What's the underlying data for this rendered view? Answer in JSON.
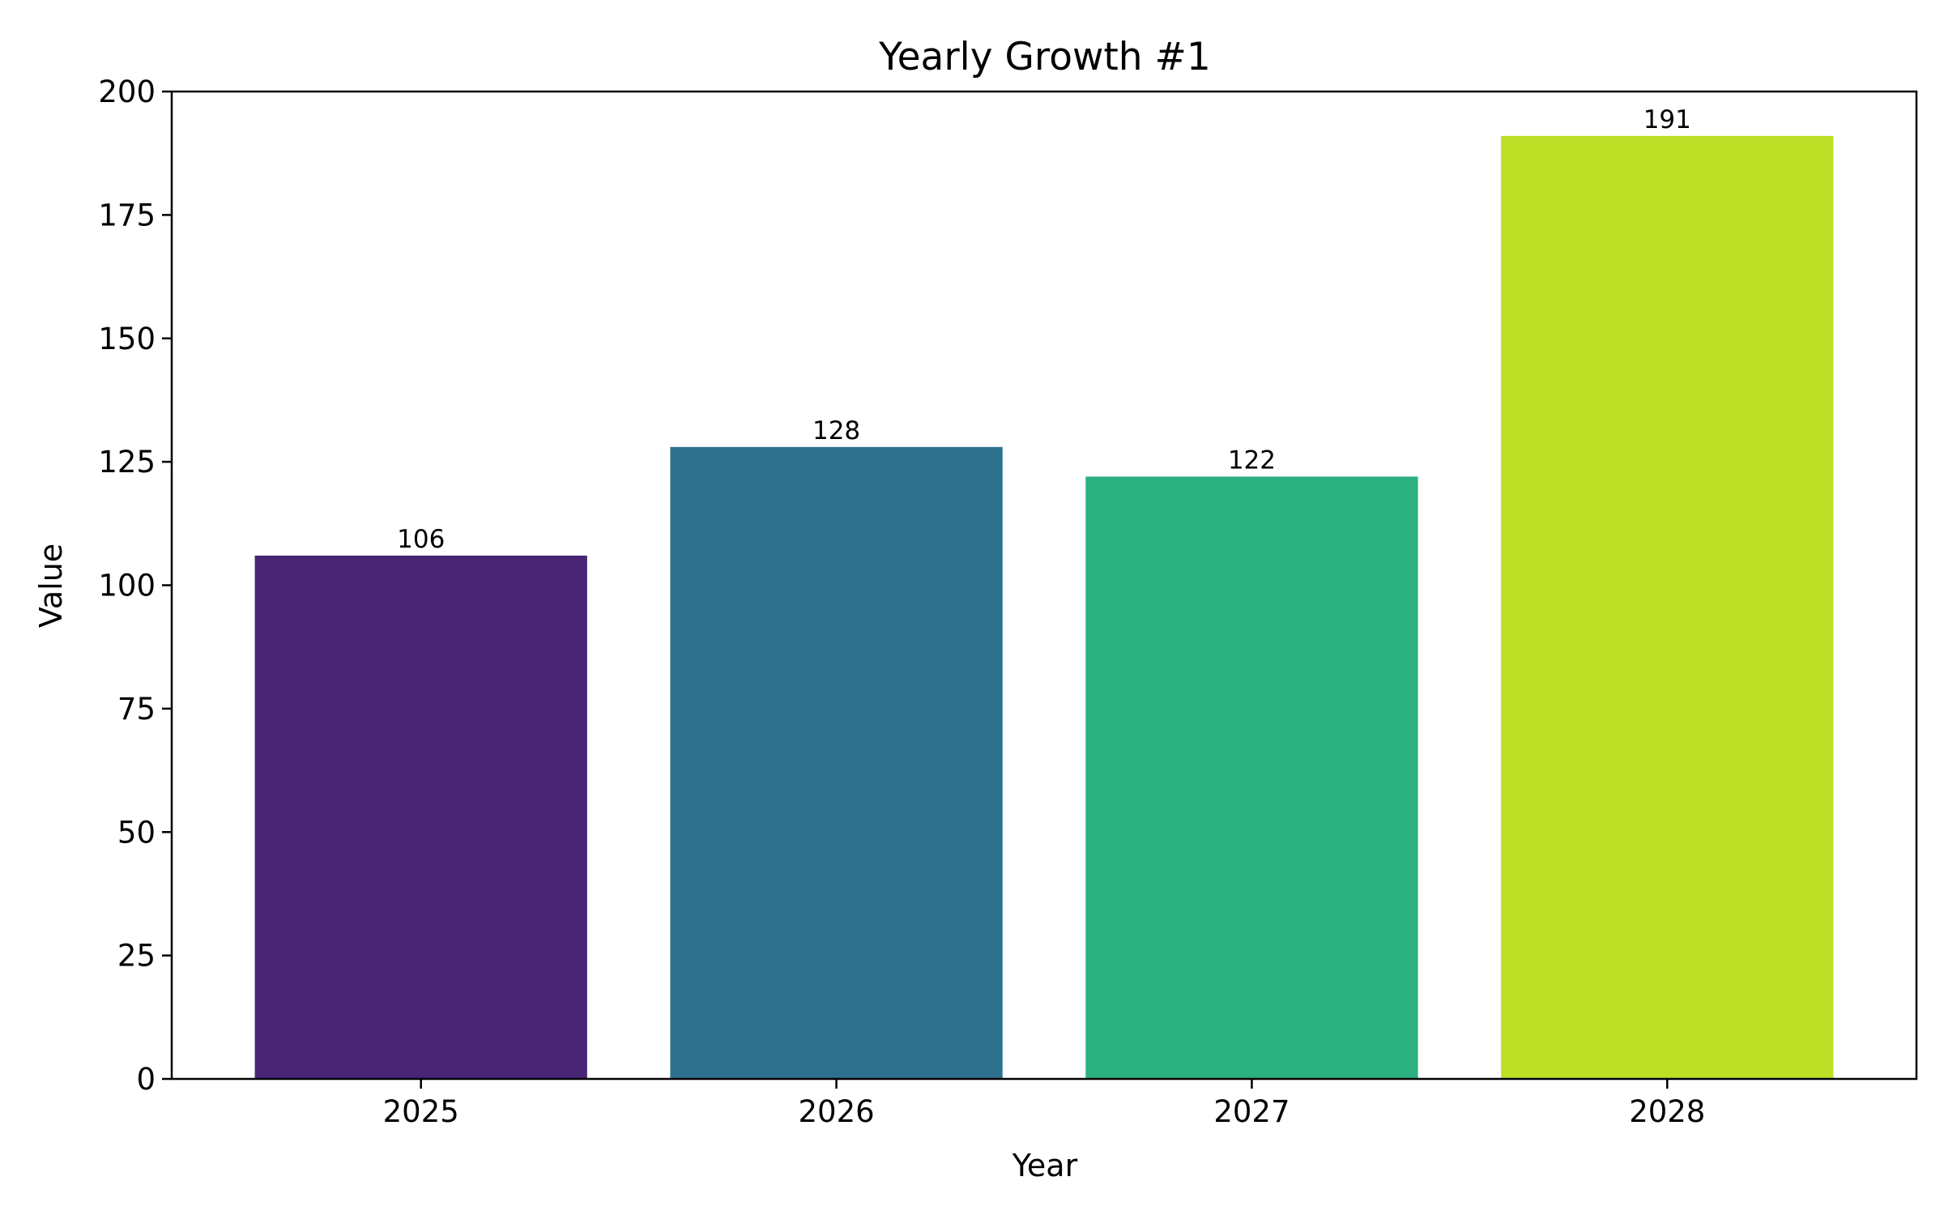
{
  "chart_data": {
    "type": "bar",
    "title": "Yearly Growth #1",
    "xlabel": "Year",
    "ylabel": "Value",
    "categories": [
      "2025",
      "2026",
      "2027",
      "2028"
    ],
    "values": [
      106,
      128,
      122,
      191
    ],
    "colors": [
      "#482575",
      "#2e718e",
      "#2bb07f",
      "#bddf26"
    ],
    "ylim": [
      0,
      200
    ],
    "yticks": [
      0,
      25,
      50,
      75,
      100,
      125,
      150,
      175,
      200
    ],
    "grid": false,
    "legend": "none",
    "data_labels": true
  }
}
